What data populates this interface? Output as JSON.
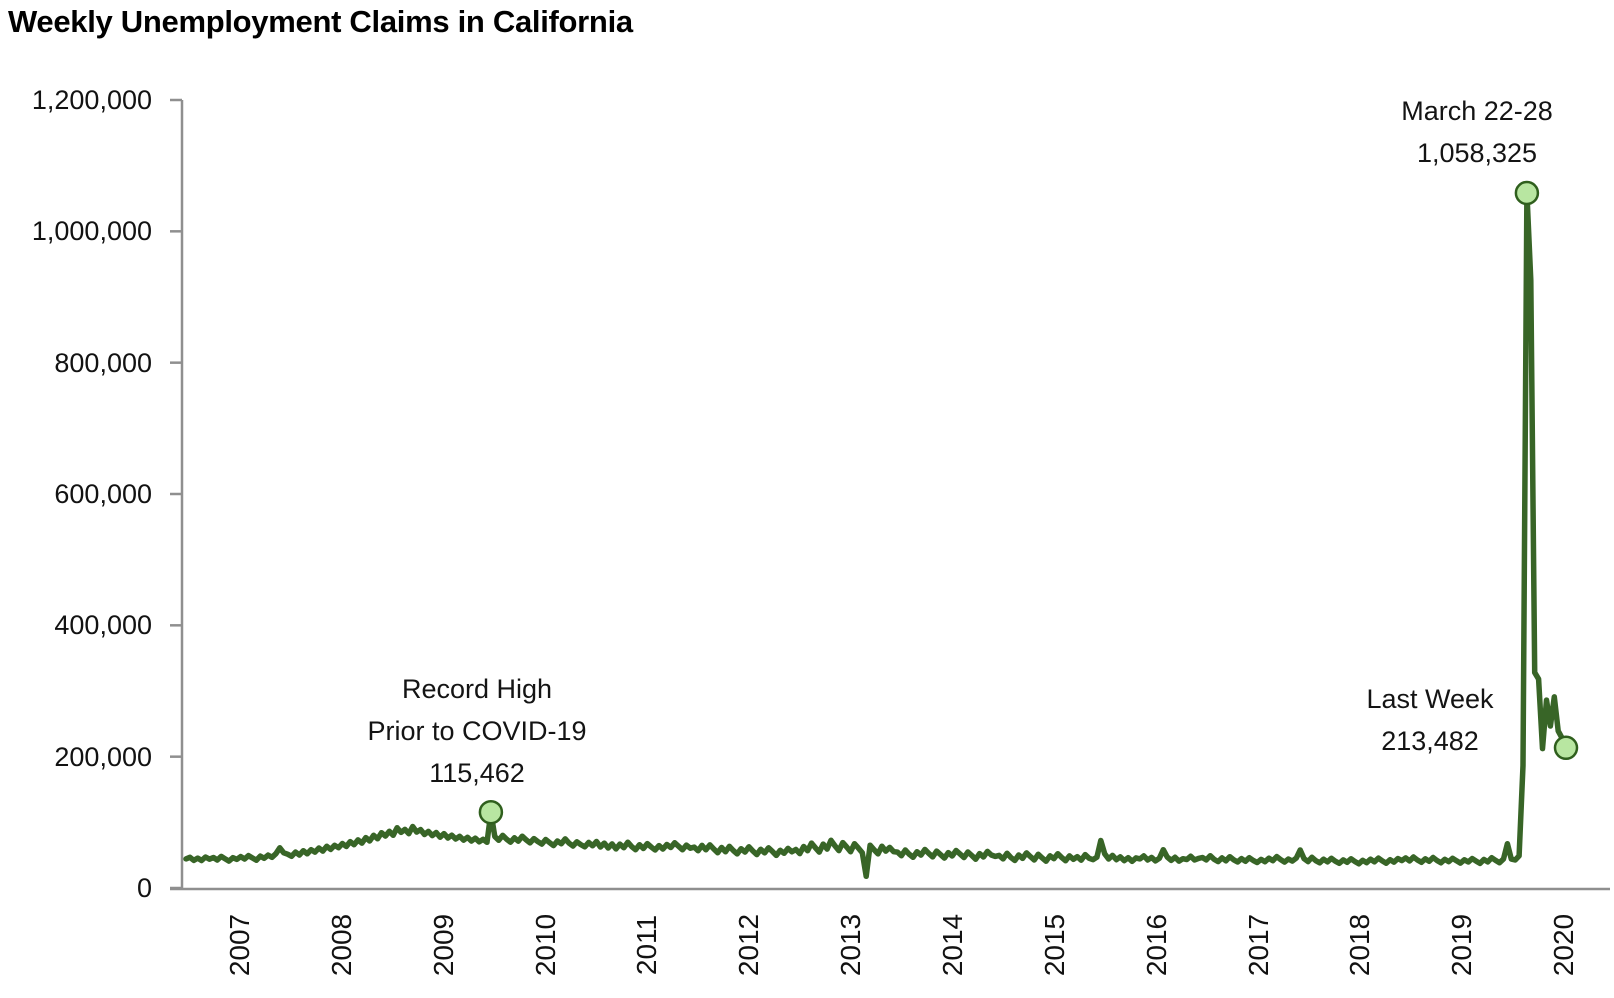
{
  "title": "Weekly Unemployment Claims in California",
  "chart_data": {
    "type": "line",
    "title": "Weekly Unemployment Claims in California",
    "xlabel": "",
    "ylabel": "",
    "x_tick_labels": [
      "2007",
      "2008",
      "2009",
      "2010",
      "2011",
      "2012",
      "2013",
      "2014",
      "2015",
      "2016",
      "2017",
      "2018",
      "2019",
      "2020"
    ],
    "y_tick_labels": [
      "0",
      "200,000",
      "400,000",
      "600,000",
      "800,000",
      "1,000,000",
      "1,200,000"
    ],
    "ylim": [
      0,
      1200000
    ],
    "y_tick_interval": 200000,
    "grid": "off",
    "legend": "none",
    "series_name": "Weekly unemployment claims",
    "sampling": "points sampled Jan 2007 through mid 2020, left to right",
    "values": [
      44300,
      46800,
      42100,
      45600,
      41900,
      47200,
      43800,
      46400,
      42700,
      48100,
      44500,
      40900,
      46200,
      43600,
      47800,
      44100,
      49300,
      45700,
      42400,
      48600,
      45200,
      50100,
      46800,
      52300,
      61200,
      53600,
      51400,
      48200,
      54600,
      50300,
      56800,
      52100,
      58400,
      54700,
      60900,
      56200,
      63500,
      58800,
      65100,
      61400,
      67800,
      63200,
      70600,
      65900,
      73200,
      68400,
      76800,
      71600,
      80300,
      74900,
      84200,
      79100,
      86400,
      80200,
      91800,
      84600,
      89300,
      82700,
      93600,
      85100,
      88900,
      81400,
      86200,
      79800,
      84500,
      77300,
      82900,
      76100,
      80400,
      74600,
      78800,
      72900,
      77200,
      71500,
      75800,
      70300,
      74100,
      69600,
      115462,
      78400,
      72600,
      80100,
      74300,
      69800,
      76500,
      71200,
      78900,
      73400,
      68700,
      75200,
      70600,
      66900,
      73800,
      69100,
      64500,
      71600,
      67300,
      74800,
      68200,
      63900,
      70400,
      66100,
      62800,
      69500,
      64200,
      70800,
      62500,
      68400,
      60900,
      67200,
      59600,
      66800,
      61300,
      69700,
      63100,
      58400,
      65900,
      60200,
      67600,
      62400,
      57800,
      64600,
      59300,
      66200,
      61700,
      68900,
      63500,
      58100,
      65400,
      60600,
      62300,
      56800,
      64900,
      58200,
      65700,
      59400,
      53800,
      61600,
      55200,
      63400,
      57100,
      51900,
      59800,
      54600,
      62700,
      56300,
      50800,
      58900,
      53400,
      61200,
      55700,
      49600,
      57400,
      52800,
      60300,
      55100,
      58600,
      52400,
      63200,
      56800,
      68400,
      61200,
      54700,
      66800,
      59300,
      72600,
      64100,
      56900,
      69200,
      62500,
      55300,
      67400,
      60800,
      53600,
      17800,
      65200,
      58400,
      51900,
      63700,
      56200,
      61800,
      55400,
      54600,
      49200,
      57800,
      51400,
      46800,
      55300,
      50100,
      58600,
      52700,
      47400,
      56200,
      50800,
      45600,
      53900,
      48700,
      57100,
      51600,
      46300,
      54800,
      49500,
      43900,
      52400,
      47200,
      55700,
      50300,
      48100,
      49600,
      44300,
      52800,
      46500,
      41900,
      50200,
      45100,
      53400,
      47800,
      42600,
      51300,
      45900,
      40800,
      49100,
      44600,
      52200,
      46400,
      41500,
      48900,
      43700,
      47600,
      42400,
      50800,
      45300,
      43200,
      46900,
      72400,
      52100,
      44200,
      49600,
      43100,
      47400,
      41800,
      46200,
      40600,
      45800,
      44300,
      48900,
      42700,
      46600,
      41200,
      45400,
      58300,
      47200,
      42100,
      46800,
      40900,
      44600,
      43400,
      48200,
      42600,
      45100,
      46400,
      42800,
      49200,
      43600,
      40200,
      45800,
      41400,
      47600,
      42900,
      39600,
      44800,
      40700,
      46200,
      41900,
      38800,
      43600,
      40100,
      45400,
      41600,
      47800,
      43200,
      39400,
      44100,
      40900,
      45600,
      57800,
      44600,
      40200,
      46800,
      41500,
      38400,
      43900,
      39700,
      45200,
      40800,
      37600,
      42800,
      39200,
      44400,
      40400,
      36900,
      42200,
      38600,
      43800,
      39900,
      45600,
      41200,
      37800,
      43100,
      39400,
      44900,
      41700,
      45800,
      41300,
      47200,
      42600,
      39100,
      44500,
      40600,
      46400,
      41900,
      38300,
      43700,
      40100,
      45300,
      41400,
      37900,
      42900,
      39600,
      44700,
      40900,
      37400,
      43400,
      39800,
      46100,
      42100,
      38600,
      44200,
      67400,
      44000,
      42600,
      48900,
      186333,
      1058325,
      925450,
      328042,
      318064,
      212343,
      286109,
      246666,
      291016,
      239212,
      228124,
      213482
    ],
    "annotations": {
      "record_high": {
        "line1": "Record High",
        "line2": "Prior to COVID-19",
        "value": "115,462",
        "series_index": 78
      },
      "covid_peak": {
        "line1": "March 22-28",
        "value": "1,058,325",
        "series_index": 343
      },
      "last_week": {
        "line1": "Last Week",
        "value": "213,482",
        "series_index": 353
      }
    },
    "colors": {
      "line": "#386527",
      "marker_fill": "#b8e6a1",
      "marker_stroke": "#2f5f1d",
      "axis": "#8f8f8f",
      "text": "#121212"
    }
  }
}
